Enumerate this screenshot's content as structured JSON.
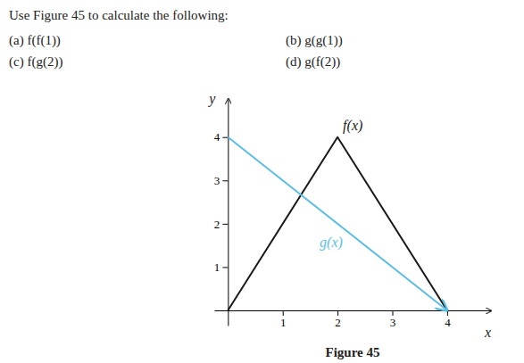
{
  "chart_data": {
    "type": "line",
    "title": "Use Figure 45 to calculate the following:",
    "annotations": [
      "(a) f(f(1))",
      "(b) g(g(1))",
      "(c) f(g(2))",
      "(d) g(f(2))"
    ],
    "caption": "Figure 45",
    "x_label": "x",
    "y_label": "y",
    "series": [
      {
        "name": "f(x)",
        "color": "#1a1a1a",
        "x": [
          0,
          2,
          4
        ],
        "values": [
          0,
          4,
          0
        ]
      },
      {
        "name": "g(x)",
        "color": "#5bbde4",
        "marker": "arrow",
        "x": [
          0,
          4
        ],
        "values": [
          4,
          0
        ]
      }
    ],
    "xlim": [
      -0.25,
      4.8
    ],
    "ylim": [
      -0.35,
      4.9
    ],
    "xticks": [
      1,
      2,
      3,
      4
    ],
    "yticks": [
      1,
      2,
      3,
      4
    ]
  }
}
